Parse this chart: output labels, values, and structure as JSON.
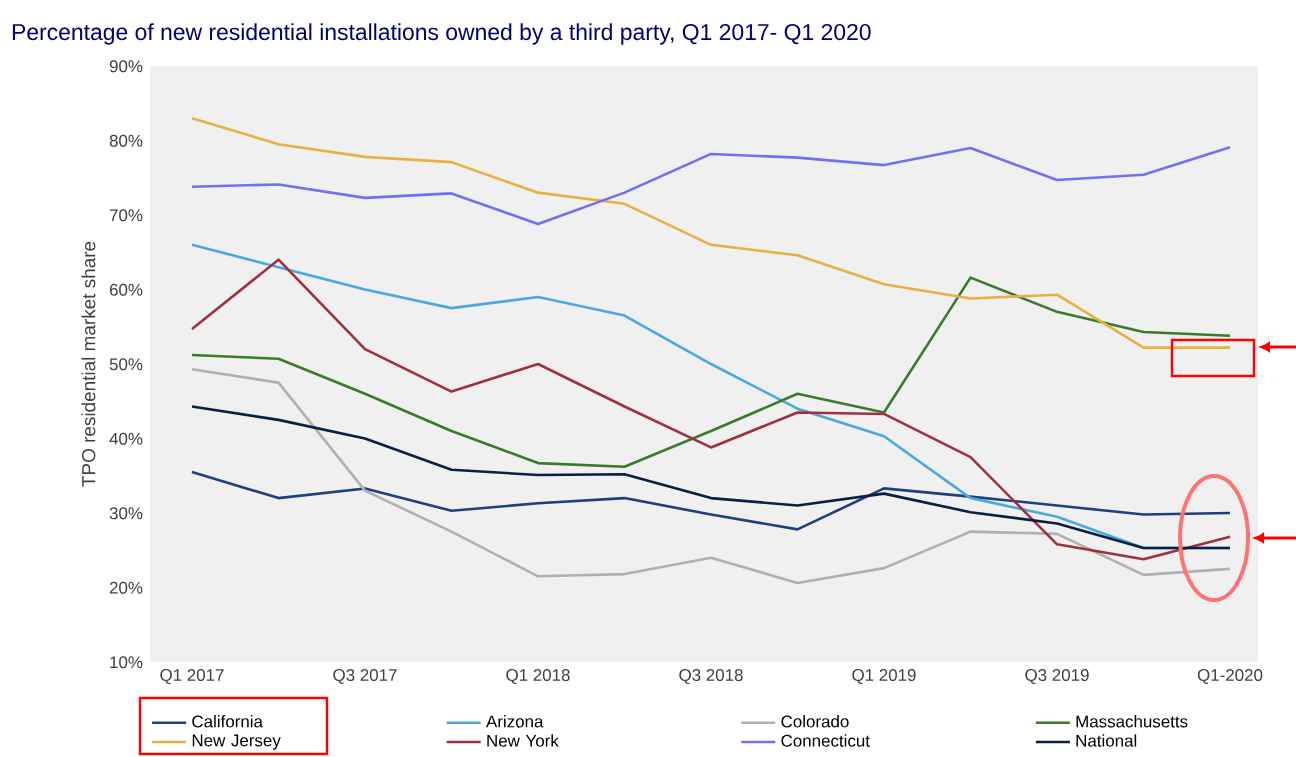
{
  "chart_data": {
    "type": "line",
    "title": "Percentage of new residential installations owned by a third party, Q1 2017- Q1 2020",
    "ylabel": "TPO residential market share",
    "categories": [
      "Q1 2017",
      null,
      "Q3 2017",
      null,
      "Q1 2018",
      null,
      "Q3 2018",
      null,
      "Q1 2019",
      null,
      "Q3 2019",
      null,
      "Q1-2020"
    ],
    "ylim": [
      10,
      90
    ],
    "yticks": [
      {
        "value": 10,
        "label": "10%"
      },
      {
        "value": 20,
        "label": "20%"
      },
      {
        "value": 30,
        "label": "30%"
      },
      {
        "value": 40,
        "label": "40%"
      },
      {
        "value": 50,
        "label": "50%"
      },
      {
        "value": 60,
        "label": "60%"
      },
      {
        "value": 70,
        "label": "70%"
      },
      {
        "value": 80,
        "label": "80%"
      },
      {
        "value": 90,
        "label": "90%"
      }
    ],
    "legend": "bottom",
    "series": [
      {
        "name": "California",
        "color": "#1f3f7f",
        "values": [
          35.5,
          32,
          33.3,
          30.3,
          31.3,
          32,
          29.8,
          27.8,
          33.3,
          32.2,
          31,
          29.8,
          30
        ]
      },
      {
        "name": "Arizona",
        "color": "#4aa8e0",
        "values": [
          66,
          63,
          60,
          57.5,
          59,
          56.5,
          50,
          44,
          40.3,
          32,
          29.5,
          25.3,
          25.3
        ]
      },
      {
        "name": "Colorado",
        "color": "#b0b0b0",
        "values": [
          49.3,
          47.5,
          33,
          27.5,
          21.5,
          21.8,
          24,
          20.6,
          22.6,
          27.5,
          27.2,
          21.7,
          22.5
        ]
      },
      {
        "name": "Massachusetts",
        "color": "#3a7a2a",
        "values": [
          51.2,
          50.7,
          46,
          41,
          36.7,
          36.2,
          41,
          46,
          43.5,
          61.6,
          57,
          54.3,
          53.8
        ]
      },
      {
        "name": "New Jersey",
        "color": "#e8b040",
        "values": [
          83,
          79.5,
          77.8,
          77.1,
          73,
          71.5,
          66,
          64.6,
          60.7,
          58.8,
          59.3,
          52.2,
          52.2
        ]
      },
      {
        "name": "New York",
        "color": "#a03040",
        "values": [
          54.7,
          64,
          52,
          46.3,
          50,
          44.3,
          38.8,
          43.5,
          43.3,
          37.5,
          25.8,
          23.8,
          26.8
        ]
      },
      {
        "name": "Connecticut",
        "color": "#7070f0",
        "values": [
          73.8,
          74.1,
          72.3,
          72.9,
          68.8,
          73,
          78.2,
          77.7,
          76.7,
          79,
          74.7,
          75.4,
          79.1
        ]
      },
      {
        "name": "National",
        "color": "#0a1f44",
        "values": [
          44.3,
          42.5,
          40,
          35.8,
          35.1,
          35.2,
          32,
          31,
          32.6,
          30.1,
          28.6,
          25.3,
          25.3
        ]
      }
    ]
  }
}
